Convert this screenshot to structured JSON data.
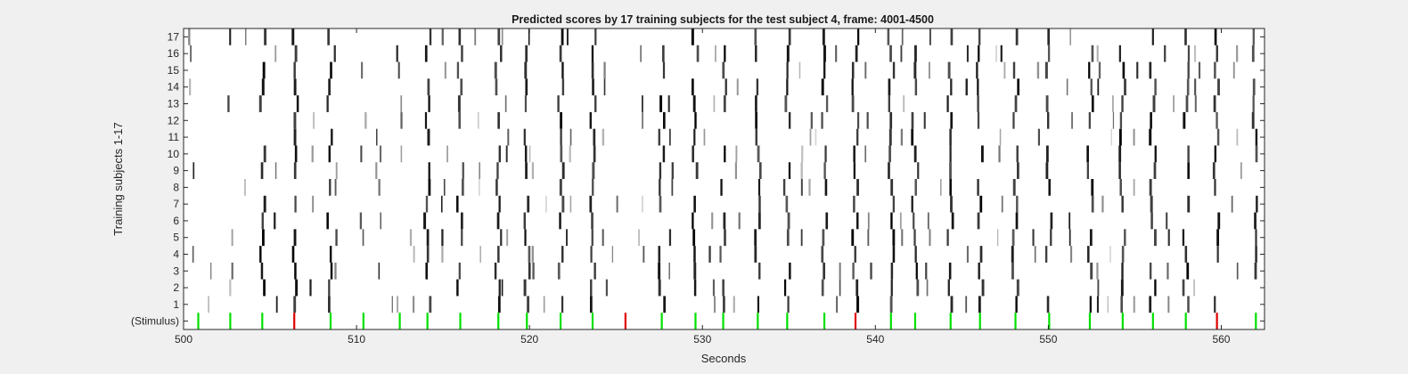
{
  "chart_data": {
    "type": "heatmap",
    "title": "Predicted scores by 17 training subjects for the test subject 4, frame: 4001-4500",
    "xlabel": "Seconds",
    "ylabel": "Training subjects 1-17",
    "xlim": [
      500,
      562.5
    ],
    "x_ticks": [
      500,
      510,
      520,
      530,
      540,
      550,
      560
    ],
    "y_tick_labels": [
      "(Stimulus)",
      "1",
      "2",
      "3",
      "4",
      "5",
      "6",
      "7",
      "8",
      "9",
      "10",
      "11",
      "12",
      "13",
      "14",
      "15",
      "16",
      "17"
    ],
    "grid": false,
    "background_color": "#ffffff",
    "stimulus": {
      "green": [
        500.85,
        502.7,
        504.55,
        508.5,
        510.4,
        512.5,
        514.1,
        516.0,
        518.2,
        519.85,
        521.8,
        523.65,
        527.65,
        529.6,
        531.2,
        533.2,
        534.9,
        537.05,
        540.9,
        542.3,
        544.35,
        546.05,
        548.1,
        550.05,
        552.4,
        554.3,
        556.05,
        557.95,
        562.0
      ],
      "red": [
        506.4,
        525.55,
        538.85,
        559.75
      ],
      "green_color": "#00e000",
      "red_color": "#e00000"
    },
    "major_events": [
      504.55,
      506.5,
      508.5,
      514.1,
      516.0,
      518.2,
      519.85,
      521.8,
      523.65,
      527.65,
      529.6,
      531.2,
      533.2,
      534.9,
      537.05,
      538.85,
      540.9,
      542.3,
      544.35,
      546.05,
      548.1,
      550.05,
      552.4,
      554.3,
      556.05,
      557.95,
      559.75,
      562.0
    ],
    "minor_events": [
      500.45,
      502.7,
      505.3,
      507.4,
      508.8,
      510.4,
      511.3,
      512.5,
      513.3,
      515.1,
      518.6,
      520.1,
      522.3,
      524.4,
      526.6,
      528.2,
      530.6,
      532.0,
      535.6,
      536.2,
      537.9,
      539.6,
      541.5,
      543.0,
      545.2,
      547.3,
      549.3,
      551.2,
      553.0,
      555.1,
      556.9,
      558.6,
      560.8
    ],
    "rare_events": [
      501.6,
      503.5,
      509.4,
      511.9,
      517.0,
      521.0,
      524.9,
      526.4,
      530.1,
      533.8,
      536.7,
      539.3,
      543.7,
      547.0,
      549.8,
      553.6,
      557.1,
      561.2
    ],
    "score_scale": "white (0) to black (1)"
  }
}
